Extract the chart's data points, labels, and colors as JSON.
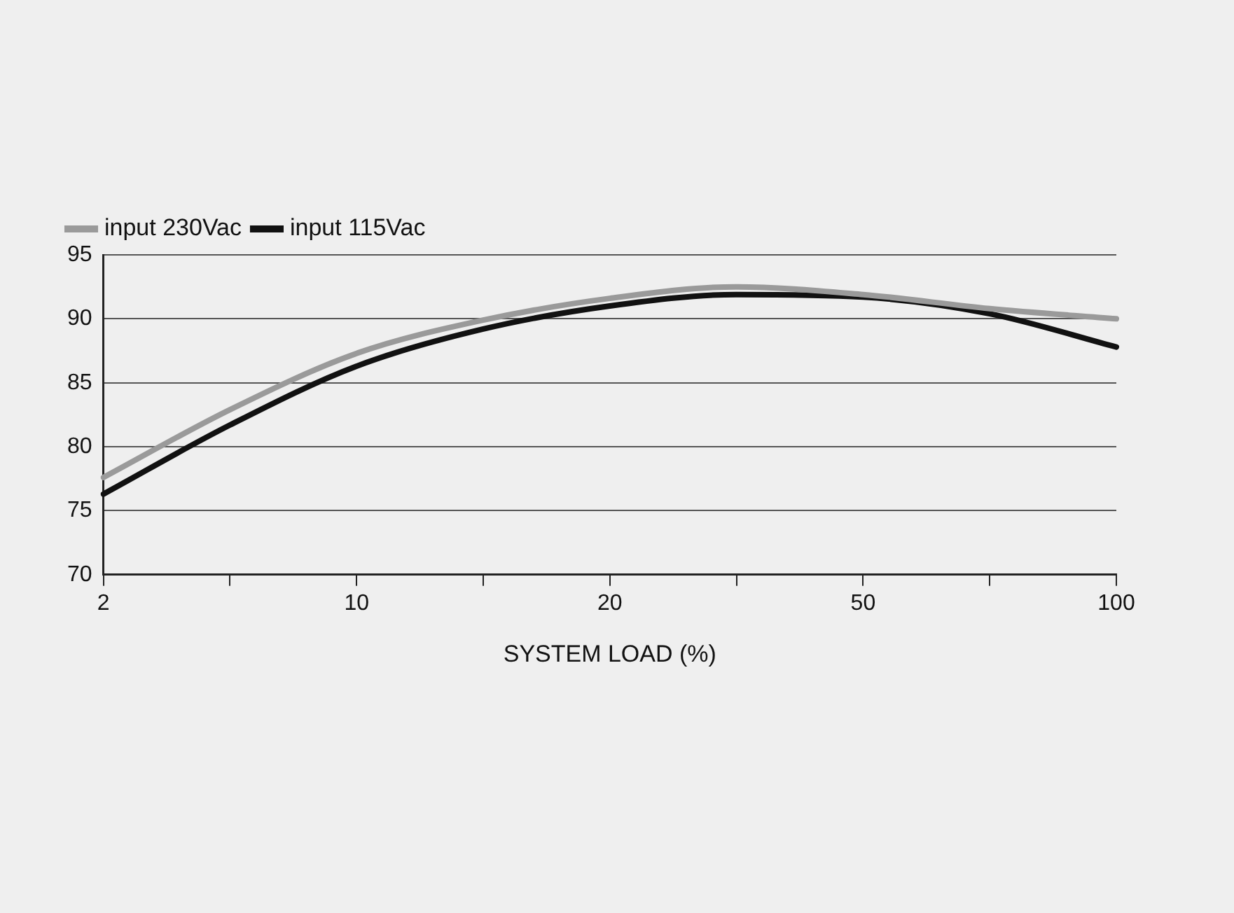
{
  "chart_data": {
    "type": "line",
    "xlabel": "SYSTEM LOAD (%)",
    "categories": [
      "2",
      null,
      "10",
      null,
      "20",
      null,
      "50",
      null,
      "100"
    ],
    "series": [
      {
        "name": "input 230Vac",
        "color": "#9a9a9a",
        "values": [
          77.6,
          82.9,
          87.3,
          89.9,
          91.6,
          92.5,
          91.9,
          90.8,
          90.0
        ]
      },
      {
        "name": "input 115Vac",
        "color": "#111111",
        "values": [
          76.3,
          81.7,
          86.3,
          89.2,
          91.0,
          91.9,
          91.7,
          90.4,
          87.8
        ]
      }
    ],
    "ylim": [
      70,
      95
    ],
    "yticks": [
      70,
      75,
      80,
      85,
      90,
      95
    ],
    "grid": "y",
    "legend": "top left",
    "marker": "none",
    "line_style": "solid"
  }
}
